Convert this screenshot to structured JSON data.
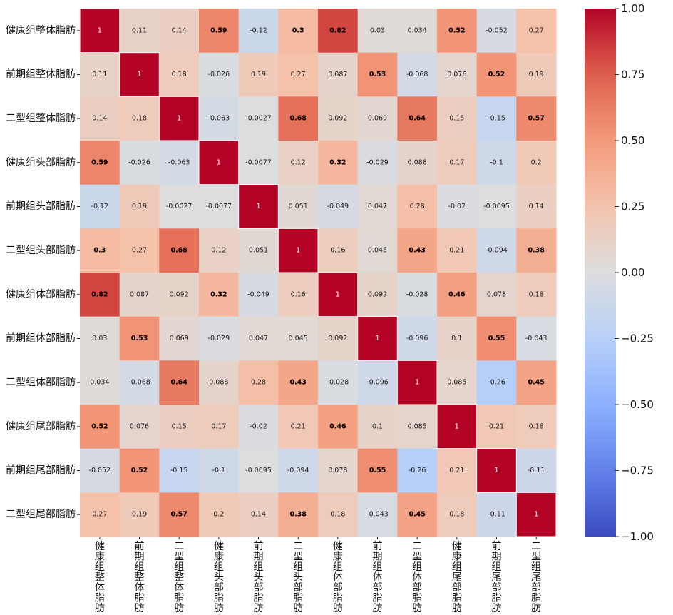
{
  "chart_data": {
    "type": "heatmap",
    "title": "",
    "xlabel": "",
    "ylabel": "",
    "labels": [
      "健康组整体脂肪",
      "前期组整体脂肪",
      "二型组整体脂肪",
      "健康组头部脂肪",
      "前期组头部脂肪",
      "二型组头部脂肪",
      "健康组体部脂肪",
      "前期组体部脂肪",
      "二型组体部脂肪",
      "健康组尾部脂肪",
      "前期组尾部脂肪",
      "二型组尾部脂肪"
    ],
    "values": [
      [
        1,
        0.11,
        0.14,
        0.59,
        -0.12,
        0.3,
        0.82,
        0.03,
        0.034,
        0.52,
        -0.052,
        0.27
      ],
      [
        0.11,
        1,
        0.18,
        -0.026,
        0.19,
        0.27,
        0.087,
        0.53,
        -0.068,
        0.076,
        0.52,
        0.19
      ],
      [
        0.14,
        0.18,
        1,
        -0.063,
        -0.0027,
        0.68,
        0.092,
        0.069,
        0.64,
        0.15,
        -0.15,
        0.57
      ],
      [
        0.59,
        -0.026,
        -0.063,
        1,
        -0.0077,
        0.12,
        0.32,
        -0.029,
        0.088,
        0.17,
        -0.1,
        0.2
      ],
      [
        -0.12,
        0.19,
        -0.0027,
        -0.0077,
        1,
        0.051,
        -0.049,
        0.047,
        0.28,
        -0.02,
        -0.0095,
        0.14
      ],
      [
        0.3,
        0.27,
        0.68,
        0.12,
        0.051,
        1,
        0.16,
        0.045,
        0.43,
        0.21,
        -0.094,
        0.38
      ],
      [
        0.82,
        0.087,
        0.092,
        0.32,
        -0.049,
        0.16,
        1,
        0.092,
        -0.028,
        0.46,
        0.078,
        0.18
      ],
      [
        0.03,
        0.53,
        0.069,
        -0.029,
        0.047,
        0.045,
        0.092,
        1,
        -0.096,
        0.1,
        0.55,
        -0.043
      ],
      [
        0.034,
        -0.068,
        0.64,
        0.088,
        0.28,
        0.43,
        -0.028,
        -0.096,
        1,
        0.085,
        -0.26,
        0.45
      ],
      [
        0.52,
        0.076,
        0.15,
        0.17,
        -0.02,
        0.21,
        0.46,
        0.1,
        0.085,
        1,
        0.21,
        0.18
      ],
      [
        -0.052,
        0.52,
        -0.15,
        -0.1,
        -0.0095,
        -0.094,
        0.078,
        0.55,
        -0.26,
        0.21,
        1,
        -0.11
      ],
      [
        0.27,
        0.19,
        0.57,
        0.2,
        0.14,
        0.38,
        0.18,
        -0.043,
        0.45,
        0.18,
        -0.11,
        1
      ]
    ],
    "value_labels": [
      [
        "1",
        "0.11",
        "0.14",
        "0.59",
        "-0.12",
        "0.3",
        "0.82",
        "0.03",
        "0.034",
        "0.52",
        "-0.052",
        "0.27"
      ],
      [
        "0.11",
        "1",
        "0.18",
        "-0.026",
        "0.19",
        "0.27",
        "0.087",
        "0.53",
        "-0.068",
        "0.076",
        "0.52",
        "0.19"
      ],
      [
        "0.14",
        "0.18",
        "1",
        "-0.063",
        "-0.0027",
        "0.68",
        "0.092",
        "0.069",
        "0.64",
        "0.15",
        "-0.15",
        "0.57"
      ],
      [
        "0.59",
        "-0.026",
        "-0.063",
        "1",
        "-0.0077",
        "0.12",
        "0.32",
        "-0.029",
        "0.088",
        "0.17",
        "-0.1",
        "0.2"
      ],
      [
        "-0.12",
        "0.19",
        "-0.0027",
        "-0.0077",
        "1",
        "0.051",
        "-0.049",
        "0.047",
        "0.28",
        "-0.02",
        "-0.0095",
        "0.14"
      ],
      [
        "0.3",
        "0.27",
        "0.68",
        "0.12",
        "0.051",
        "1",
        "0.16",
        "0.045",
        "0.43",
        "0.21",
        "-0.094",
        "0.38"
      ],
      [
        "0.82",
        "0.087",
        "0.092",
        "0.32",
        "-0.049",
        "0.16",
        "1",
        "0.092",
        "-0.028",
        "0.46",
        "0.078",
        "0.18"
      ],
      [
        "0.03",
        "0.53",
        "0.069",
        "-0.029",
        "0.047",
        "0.045",
        "0.092",
        "1",
        "-0.096",
        "0.1",
        "0.55",
        "-0.043"
      ],
      [
        "0.034",
        "-0.068",
        "0.64",
        "0.088",
        "0.28",
        "0.43",
        "-0.028",
        "-0.096",
        "1",
        "0.085",
        "-0.26",
        "0.45"
      ],
      [
        "0.52",
        "0.076",
        "0.15",
        "0.17",
        "-0.02",
        "0.21",
        "0.46",
        "0.1",
        "0.085",
        "1",
        "0.21",
        "0.18"
      ],
      [
        "-0.052",
        "0.52",
        "-0.15",
        "-0.1",
        "-0.0095",
        "-0.094",
        "0.078",
        "0.55",
        "-0.26",
        "0.21",
        "1",
        "-0.11"
      ],
      [
        "0.27",
        "0.19",
        "0.57",
        "0.2",
        "0.14",
        "0.38",
        "0.18",
        "-0.043",
        "0.45",
        "0.18",
        "-0.11",
        "1"
      ]
    ],
    "bold_threshold": 0.3,
    "colormap": "coolwarm",
    "vmin": -1.0,
    "vmax": 1.0,
    "colorbar": {
      "position": "right",
      "ticks": [
        1.0,
        0.75,
        0.5,
        0.25,
        0.0,
        -0.25,
        -0.5,
        -0.75,
        -1.0
      ],
      "tick_labels": [
        "1.00",
        "0.75",
        "0.50",
        "0.25",
        "0.00",
        "−0.25",
        "−0.50",
        "−0.75",
        "−1.00"
      ]
    },
    "colors": {
      "min": "#3b4cc0",
      "mid": "#dddddd",
      "max": "#b40426",
      "diagonal_text": "#ffffff",
      "text": "#222222"
    }
  }
}
